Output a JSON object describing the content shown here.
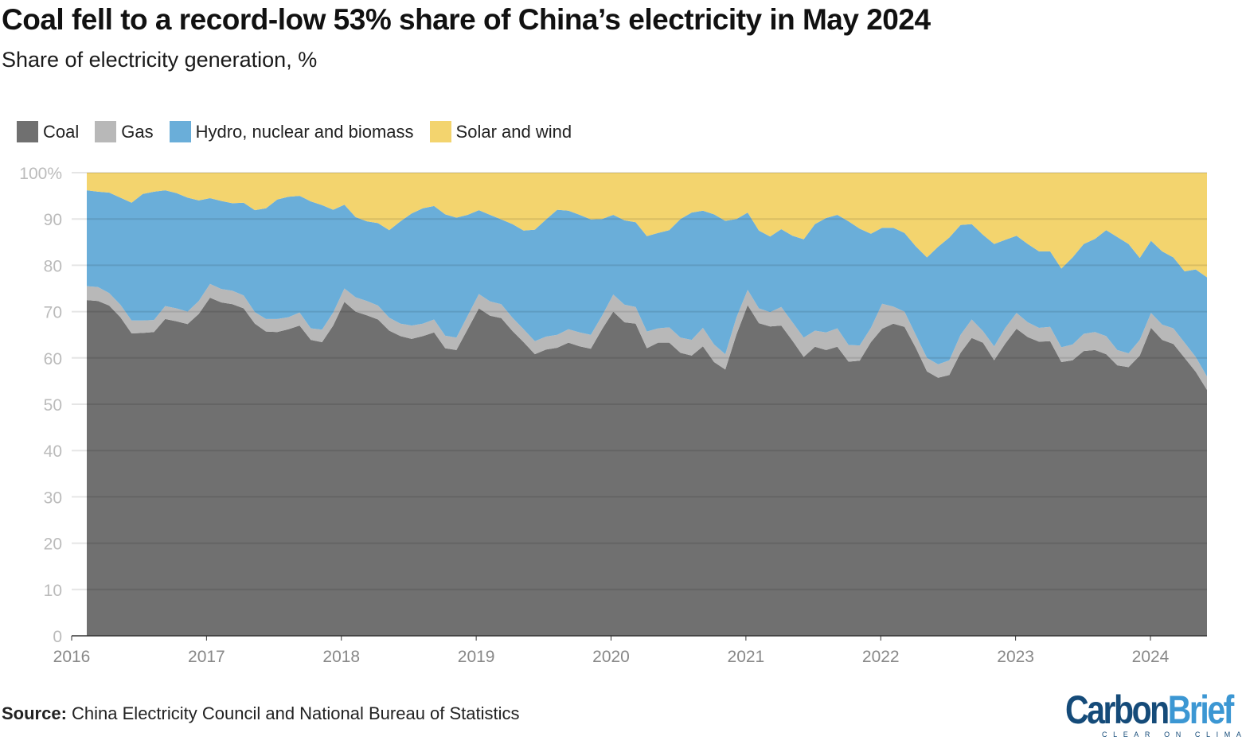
{
  "title": "Coal fell to a record-low 53% share of China’s electricity in May 2024",
  "subtitle": "Share of electricity generation, %",
  "source_label": "Source:",
  "source_text": " China Electricity Council and National Bureau of Statistics",
  "logo": {
    "word1": "Carbon",
    "word2": "Brief",
    "tagline": "CLEAR ON CLIMATE"
  },
  "chart_data": {
    "type": "area",
    "stacked": true,
    "title": "Coal fell to a record-low 53% share of China’s electricity in May 2024",
    "ylabel": "Share of electricity generation, %",
    "xlabel": "",
    "x_range": [
      "2016-01",
      "2024-05"
    ],
    "x_frequency": "monthly",
    "ylim": [
      0,
      100
    ],
    "grid": true,
    "legend_placement": "top-left",
    "y_ticks": [
      "0",
      "10",
      "20",
      "30",
      "40",
      "50",
      "60",
      "70",
      "80",
      "90",
      "100%"
    ],
    "x_ticks": [
      "2016",
      "2017",
      "2018",
      "2019",
      "2020",
      "2021",
      "2022",
      "2023",
      "2024"
    ],
    "series": [
      {
        "name": "Coal",
        "color": "#707070",
        "values": [
          72.5,
          72.3,
          71.3,
          68.8,
          65.3,
          65.4,
          65.6,
          68.4,
          67.9,
          67.3,
          69.5,
          73.0,
          72.0,
          71.6,
          70.7,
          67.4,
          65.7,
          65.6,
          66.2,
          67.0,
          63.9,
          63.4,
          67.0,
          72.1,
          70.0,
          69.2,
          68.3,
          65.9,
          64.7,
          64.1,
          64.7,
          65.5,
          62.1,
          61.7,
          66.2,
          70.7,
          69.1,
          68.6,
          65.8,
          63.4,
          60.8,
          61.8,
          62.2,
          63.3,
          62.5,
          62.0,
          66.2,
          70.0,
          67.7,
          67.4,
          62.1,
          63.3,
          63.3,
          61.1,
          60.5,
          62.5,
          59.1,
          57.5,
          65.1,
          71.4,
          67.5,
          66.8,
          67.0,
          63.7,
          60.2,
          62.4,
          61.7,
          62.4,
          59.2,
          59.4,
          63.4,
          66.3,
          67.4,
          66.7,
          62.2,
          57.1,
          55.7,
          56.3,
          61.1,
          64.3,
          63.3,
          59.5,
          63.1,
          66.3,
          64.5,
          63.5,
          63.6,
          59.1,
          59.5,
          61.5,
          61.7,
          60.8,
          58.4,
          58.0,
          60.5,
          66.5,
          63.9,
          63.0,
          60.0,
          57.0,
          53.1
        ]
      },
      {
        "name": "Gas",
        "color": "#b8b8b8",
        "values": [
          3.0,
          3.0,
          2.7,
          2.7,
          2.8,
          2.7,
          2.6,
          2.8,
          2.8,
          2.7,
          2.8,
          3.0,
          2.9,
          2.9,
          2.8,
          2.5,
          2.7,
          2.8,
          2.6,
          2.8,
          2.5,
          2.7,
          2.8,
          2.9,
          3.1,
          3.1,
          3.0,
          2.8,
          2.7,
          2.9,
          2.7,
          2.8,
          2.7,
          2.7,
          2.9,
          3.1,
          3.1,
          3.0,
          2.9,
          2.8,
          2.8,
          2.8,
          2.8,
          2.9,
          3.0,
          3.0,
          2.9,
          3.7,
          3.8,
          3.6,
          3.6,
          3.1,
          3.3,
          3.3,
          3.4,
          4.0,
          3.8,
          3.3,
          3.7,
          3.3,
          3.2,
          3.1,
          4.0,
          4.0,
          4.2,
          3.5,
          3.8,
          4.0,
          3.6,
          3.3,
          3.1,
          5.4,
          3.7,
          3.3,
          2.8,
          2.9,
          2.9,
          3.2,
          3.9,
          4.0,
          2.5,
          3.0,
          3.4,
          3.4,
          3.2,
          3.0,
          3.1,
          3.2,
          3.4,
          3.7,
          3.9,
          3.9,
          3.3,
          3.0,
          3.4,
          3.2,
          3.3,
          3.4,
          3.3,
          3.2,
          2.9
        ]
      },
      {
        "name": "Hydro, nuclear and biomass",
        "color": "#6aaed9",
        "values": [
          20.7,
          20.6,
          21.7,
          23.1,
          25.4,
          27.3,
          27.7,
          25.0,
          24.9,
          24.6,
          21.7,
          18.5,
          19.0,
          18.9,
          20.0,
          22.0,
          23.9,
          25.8,
          26.0,
          25.2,
          27.4,
          26.9,
          22.2,
          18.1,
          17.3,
          17.2,
          17.8,
          18.9,
          22.1,
          24.2,
          24.9,
          24.5,
          26.2,
          25.9,
          21.8,
          18.1,
          18.7,
          18.3,
          20.2,
          21.3,
          24.1,
          25.3,
          27.0,
          25.6,
          25.4,
          24.9,
          20.9,
          17.2,
          18.2,
          18.3,
          20.6,
          20.6,
          21.0,
          25.6,
          27.5,
          25.3,
          28.1,
          28.8,
          21.2,
          16.7,
          16.8,
          16.3,
          16.8,
          18.7,
          21.2,
          23.0,
          24.7,
          24.5,
          26.7,
          25.2,
          20.3,
          16.4,
          17.0,
          17.0,
          19.1,
          21.7,
          25.4,
          26.5,
          23.7,
          20.6,
          20.8,
          22.1,
          19.0,
          16.7,
          16.9,
          16.5,
          16.3,
          17.0,
          18.8,
          19.4,
          20.1,
          22.9,
          24.4,
          23.6,
          17.7,
          15.6,
          15.8,
          15.3,
          15.4,
          18.9,
          21.4
        ]
      },
      {
        "name": "Solar and wind",
        "color": "#f3d46e",
        "values": [
          3.8,
          4.1,
          4.3,
          5.4,
          6.5,
          4.6,
          4.1,
          3.8,
          4.4,
          5.4,
          6.0,
          5.5,
          6.1,
          6.6,
          6.5,
          8.1,
          7.7,
          5.8,
          5.2,
          5.0,
          6.2,
          7.0,
          8.0,
          6.9,
          9.6,
          10.5,
          10.9,
          12.4,
          10.5,
          8.8,
          7.7,
          7.2,
          9.0,
          9.7,
          9.1,
          8.1,
          9.1,
          10.1,
          11.1,
          12.5,
          12.3,
          10.1,
          8.0,
          8.2,
          9.1,
          10.1,
          10.0,
          9.1,
          10.3,
          10.7,
          13.7,
          13.0,
          12.4,
          10.0,
          8.6,
          8.2,
          9.0,
          10.4,
          10.0,
          8.6,
          12.5,
          13.8,
          12.2,
          13.6,
          14.4,
          11.1,
          9.8,
          9.1,
          10.5,
          12.1,
          13.2,
          11.9,
          11.9,
          13.0,
          15.9,
          18.3,
          16.0,
          14.0,
          11.3,
          11.1,
          13.4,
          15.4,
          14.5,
          13.6,
          15.4,
          17.0,
          17.0,
          20.7,
          18.3,
          15.4,
          14.3,
          12.4,
          13.9,
          15.4,
          18.4,
          14.7,
          17.0,
          18.3,
          21.3,
          20.9,
          22.6
        ]
      }
    ]
  }
}
